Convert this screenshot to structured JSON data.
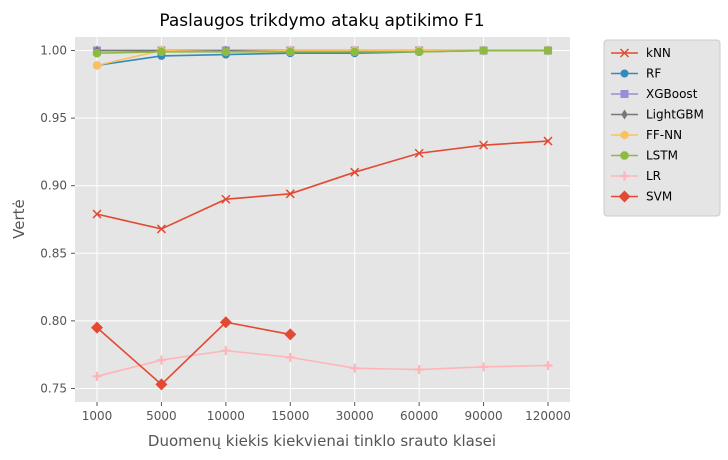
{
  "chart_data": {
    "type": "line",
    "title": "Paslaugos trikdymo atakų aptikimo F1",
    "xlabel": "Duomenų kiekis kiekvienai tinklo srauto klasei",
    "ylabel": "Vertė",
    "categories": [
      "1000",
      "5000",
      "10000",
      "15000",
      "30000",
      "60000",
      "90000",
      "120000"
    ],
    "ylim": [
      0.74,
      1.01
    ],
    "yticks": [
      "0.75",
      "0.80",
      "0.85",
      "0.90",
      "0.95",
      "1.00"
    ],
    "grid": true,
    "legend_position": "outside-right",
    "series": [
      {
        "name": "kNN",
        "color": "#e24a33",
        "marker": "x",
        "values": [
          0.879,
          0.868,
          0.89,
          0.894,
          0.91,
          0.924,
          0.93,
          0.933
        ]
      },
      {
        "name": "RF",
        "color": "#348abd",
        "marker": "circle",
        "values": [
          0.989,
          0.996,
          0.997,
          0.998,
          0.998,
          0.999,
          1.0,
          1.0
        ]
      },
      {
        "name": "XGBoost",
        "color": "#988ed5",
        "marker": "square",
        "values": [
          1.0,
          1.0,
          1.0,
          1.0,
          1.0,
          1.0,
          1.0,
          1.0
        ]
      },
      {
        "name": "LightGBM",
        "color": "#777777",
        "marker": "thin-diamond",
        "values": [
          1.0,
          1.0,
          1.0,
          1.0,
          1.0,
          1.0,
          1.0,
          1.0
        ]
      },
      {
        "name": "FF-NN",
        "color": "#fbc15e",
        "marker": "hexagon",
        "values": [
          0.989,
          1.0,
          0.999,
          1.0,
          1.0,
          1.0,
          1.0,
          1.0
        ]
      },
      {
        "name": "LSTM",
        "color": "#8eba42",
        "marker": "octagon",
        "values": [
          0.998,
          0.999,
          0.999,
          0.999,
          0.999,
          0.999,
          1.0,
          1.0
        ]
      },
      {
        "name": "LR",
        "color": "#ffb5b8",
        "marker": "plus",
        "values": [
          0.759,
          0.771,
          0.778,
          0.773,
          0.765,
          0.764,
          0.766,
          0.767
        ]
      },
      {
        "name": "SVM",
        "color": "#e24a33",
        "marker": "diamond",
        "values": [
          0.795,
          0.753,
          0.799,
          0.79,
          null,
          null,
          null,
          null
        ]
      }
    ]
  }
}
